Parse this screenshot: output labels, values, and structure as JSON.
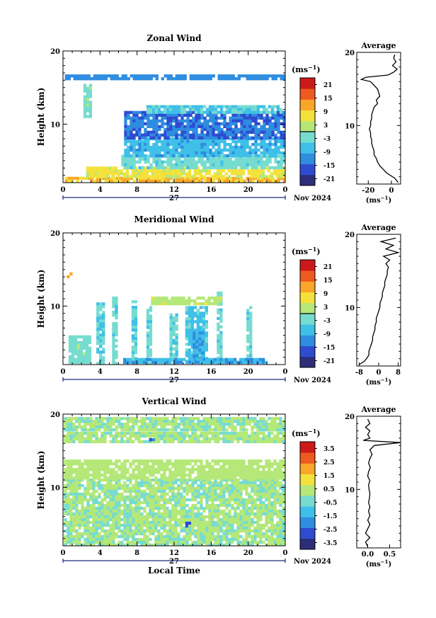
{
  "colors": {
    "colormap": [
      "#2d2d7a",
      "#2f4bd0",
      "#2f8de0",
      "#3fc0e8",
      "#77dcd0",
      "#b5e878",
      "#f4e23c",
      "#f9a62a",
      "#ee5a1f",
      "#cc1a1a"
    ],
    "axes": "#000000",
    "time_axis": "#1a2a7a"
  },
  "chart_data": [
    {
      "type": "heatmap",
      "title": "Zonal Wind",
      "xlabel": "",
      "ylabel": "Height (km)",
      "x_ticks": [
        "0",
        "4",
        "8",
        "12",
        "16",
        "20",
        "0"
      ],
      "x_range_hours": [
        0,
        24
      ],
      "y_ticks": [
        "10",
        "20"
      ],
      "ylim": [
        2,
        20
      ],
      "date_label": "27",
      "date_suffix": "Nov 2024",
      "colorbar": {
        "unit": "(ms",
        "unit_exp": "−1",
        "unit_close": ")",
        "range": [
          -24,
          24
        ],
        "ticks": [
          "21",
          "15",
          "9",
          "3",
          "-3",
          "-9",
          "-15",
          "-21"
        ],
        "zero_line": true
      },
      "regions": [
        {
          "x0": 0.2,
          "x1": 24,
          "y0": 2.1,
          "y1": 2.8,
          "v": 10
        },
        {
          "x0": 2.5,
          "x1": 24,
          "y0": 2.8,
          "y1": 4.2,
          "v": 6
        },
        {
          "x0": 6.3,
          "x1": 24,
          "y0": 4.2,
          "y1": 5.8,
          "v": -3
        },
        {
          "x0": 6.6,
          "x1": 24,
          "y0": 5.8,
          "y1": 8.2,
          "v": -8
        },
        {
          "x0": 6.6,
          "x1": 24,
          "y0": 8.2,
          "y1": 11.8,
          "v": -14
        },
        {
          "x0": 9.0,
          "x1": 23.5,
          "y0": 11.8,
          "y1": 12.6,
          "v": -5
        },
        {
          "x0": 2.2,
          "x1": 2.9,
          "y0": 11.0,
          "y1": 15.5,
          "v": -2
        },
        {
          "x0": 0.2,
          "x1": 23.8,
          "y0": 16.3,
          "y1": 16.8,
          "v": -12
        }
      ],
      "average_profile": {
        "title": "Average",
        "x_ticks": [
          "-20",
          "0"
        ],
        "xlim": [
          -30,
          8
        ],
        "y_ticks": [
          "10",
          "20"
        ],
        "unit": "(ms",
        "unit_exp": "−1",
        "unit_close": ")",
        "heights": [
          2.2,
          2.8,
          3.5,
          4.0,
          4.5,
          5.0,
          5.5,
          6.0,
          6.5,
          7.0,
          7.5,
          8.0,
          8.5,
          9.0,
          9.5,
          10.0,
          10.5,
          11.0,
          11.5,
          12.0,
          12.5,
          13.0,
          13.5,
          14.0,
          14.5,
          15.0,
          15.5,
          16.0,
          16.3,
          16.6,
          16.9,
          17.3,
          17.7,
          18.2,
          18.7,
          19.2,
          19.7
        ],
        "values": [
          6,
          3,
          -4,
          -7,
          -10,
          -12,
          -13,
          -15,
          -15,
          -16,
          -17,
          -17,
          -18,
          -18,
          -19,
          -18,
          -18,
          -17,
          -17,
          -16,
          -15,
          -12,
          -13,
          -10,
          -11,
          -12,
          -15,
          -18,
          -26,
          -22,
          -3,
          2,
          5,
          1,
          4,
          2,
          3
        ]
      }
    },
    {
      "type": "heatmap",
      "title": "Meridional Wind",
      "xlabel": "",
      "ylabel": "Height (km)",
      "x_ticks": [
        "0",
        "4",
        "8",
        "12",
        "16",
        "20",
        "0"
      ],
      "x_range_hours": [
        0,
        24
      ],
      "y_ticks": [
        "10",
        "20"
      ],
      "ylim": [
        2,
        20
      ],
      "date_label": "27",
      "date_suffix": "Nov 2024",
      "colorbar": {
        "unit": "(ms",
        "unit_exp": "−1",
        "unit_close": ")",
        "range": [
          -24,
          24
        ],
        "ticks": [
          "21",
          "15",
          "9",
          "3",
          "-3",
          "-9",
          "-15",
          "-21"
        ],
        "zero_line": true
      },
      "regions": [
        {
          "x0": 3.6,
          "x1": 4.3,
          "y0": 2.2,
          "y1": 10.5,
          "v": -4
        },
        {
          "x0": 5.3,
          "x1": 5.8,
          "y0": 2.2,
          "y1": 11.3,
          "v": -3
        },
        {
          "x0": 7.4,
          "x1": 7.8,
          "y0": 2.2,
          "y1": 10.8,
          "v": -4
        },
        {
          "x0": 9.0,
          "x1": 9.6,
          "y0": 2.2,
          "y1": 10.0,
          "v": -3
        },
        {
          "x0": 11.5,
          "x1": 12.2,
          "y0": 2.2,
          "y1": 9.0,
          "v": -4
        },
        {
          "x0": 13.2,
          "x1": 15.5,
          "y0": 2.5,
          "y1": 10.0,
          "v": -6
        },
        {
          "x0": 14.0,
          "x1": 15.1,
          "y0": 2.5,
          "y1": 6.5,
          "v": -10
        },
        {
          "x0": 16.6,
          "x1": 17.1,
          "y0": 2.2,
          "y1": 12.0,
          "v": -3
        },
        {
          "x0": 19.8,
          "x1": 20.4,
          "y0": 2.5,
          "y1": 10.0,
          "v": -3
        },
        {
          "x0": 0.6,
          "x1": 3.0,
          "y0": 2.5,
          "y1": 6.0,
          "v": -2
        },
        {
          "x0": 6.5,
          "x1": 22.0,
          "y0": 2.2,
          "y1": 2.9,
          "v": -9
        },
        {
          "x0": 9.5,
          "x1": 17.0,
          "y0": 10.5,
          "y1": 11.3,
          "v": 3
        },
        {
          "x0": 0.4,
          "x1": 0.8,
          "y0": 14.0,
          "y1": 14.6,
          "v": 12
        }
      ],
      "average_profile": {
        "title": "Average",
        "x_ticks": [
          "-8",
          "0",
          "8"
        ],
        "xlim": [
          -9,
          9
        ],
        "y_ticks": [
          "10",
          "20"
        ],
        "unit": "(ms",
        "unit_exp": "−1",
        "unit_close": ")",
        "heights": [
          2.2,
          2.6,
          3.0,
          3.5,
          4.0,
          4.5,
          5.0,
          5.5,
          6.0,
          6.5,
          7.0,
          7.5,
          8.0,
          8.5,
          9.0,
          9.5,
          10.0,
          10.5,
          11.0,
          11.5,
          12.0,
          12.5,
          13.0,
          13.5,
          14.0,
          14.5,
          15.0,
          15.5,
          16.0,
          16.5,
          17.0,
          17.5,
          18.0,
          18.5,
          19.0,
          19.5
        ],
        "values": [
          -8,
          -6,
          -5,
          -4,
          -4,
          -3.5,
          -3,
          -2.5,
          -2.5,
          -2,
          -1.5,
          -1.5,
          -1,
          -1,
          -0.5,
          0,
          0.5,
          0.5,
          1,
          1.5,
          1.5,
          2,
          2.5,
          2.5,
          3,
          3.5,
          3.5,
          4,
          3,
          4.5,
          2,
          8,
          3,
          6,
          1,
          7
        ]
      }
    },
    {
      "type": "heatmap",
      "title": "Vertical Wind",
      "xlabel": "Local Time",
      "ylabel": "Height (km)",
      "x_ticks": [
        "0",
        "4",
        "8",
        "12",
        "16",
        "20",
        "0"
      ],
      "x_range_hours": [
        0,
        24
      ],
      "y_ticks": [
        "10",
        "20"
      ],
      "ylim": [
        2,
        20
      ],
      "date_label": "27",
      "date_suffix": "Nov 2024",
      "colorbar": {
        "unit": "(ms",
        "unit_exp": "−1",
        "unit_close": ")",
        "range": [
          -4,
          4
        ],
        "ticks": [
          "3.5",
          "2.5",
          "1.5",
          "0.5",
          "-0.5",
          "-1.5",
          "-2.5",
          "-3.5"
        ],
        "zero_line": false
      },
      "regions": [
        {
          "x0": 0.1,
          "x1": 24,
          "y0": 2.2,
          "y1": 11.2,
          "v": 0.1
        },
        {
          "x0": 0.1,
          "x1": 24,
          "y0": 11.4,
          "y1": 13.8,
          "v": 0.4
        },
        {
          "x0": 0.1,
          "x1": 24,
          "y0": 16.4,
          "y1": 17.6,
          "v": 0.2
        },
        {
          "x0": 0.1,
          "x1": 24,
          "y0": 18.0,
          "y1": 19.6,
          "v": 0.1
        },
        {
          "x0": 13.2,
          "x1": 13.6,
          "y0": 4.8,
          "y1": 5.3,
          "v": -2.8
        },
        {
          "x0": 9.3,
          "x1": 9.7,
          "y0": 16.7,
          "y1": 17.1,
          "v": -2.5
        }
      ],
      "average_profile": {
        "title": "Average",
        "x_ticks": [
          "0.0",
          "0.5"
        ],
        "xlim": [
          -0.25,
          0.75
        ],
        "y_ticks": [
          "10",
          "20"
        ],
        "unit": "(ms",
        "unit_exp": "−1",
        "unit_close": ")",
        "heights": [
          2.2,
          2.8,
          3.4,
          4.0,
          4.6,
          5.2,
          5.8,
          6.4,
          7.0,
          7.6,
          8.2,
          8.8,
          9.4,
          10.0,
          10.6,
          11.2,
          11.8,
          12.4,
          13.0,
          13.6,
          14.2,
          14.8,
          15.4,
          16.0,
          16.4,
          16.7,
          17.0,
          17.5,
          18.0,
          18.5,
          19.0,
          19.6
        ],
        "values": [
          0.0,
          -0.05,
          0.05,
          -0.05,
          0.0,
          0.05,
          0.0,
          0.05,
          0.02,
          0.05,
          0.02,
          0.04,
          0.05,
          0.03,
          0.02,
          0.05,
          0.0,
          0.02,
          0.06,
          0.02,
          0.05,
          0.1,
          0.05,
          0.15,
          0.75,
          -0.1,
          0.05,
          0.0,
          0.05,
          -0.05,
          0.05,
          0.0
        ]
      }
    }
  ]
}
